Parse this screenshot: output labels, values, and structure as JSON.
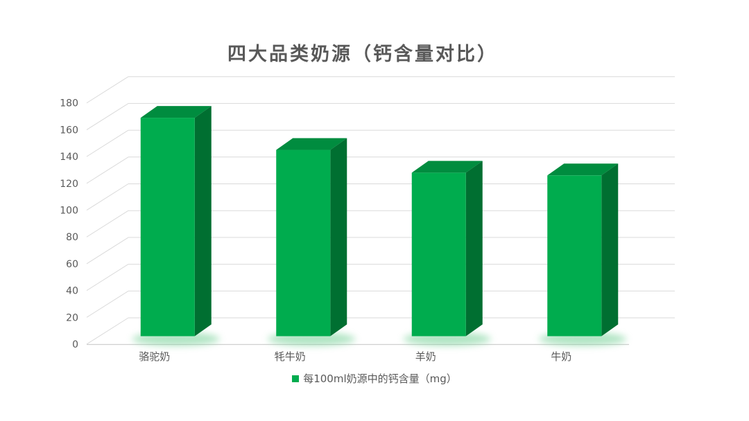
{
  "title": "四大品类奶源（钙含量对比）",
  "colors": {
    "bar_front": "#00AC4E",
    "bar_top": "#008C3F",
    "bar_side": "#006F31",
    "bar_glow": "#7FD49E",
    "gridline": "#DADADA",
    "axis_line": "#CFCFCF",
    "text": "#595959",
    "title_text": "#595959",
    "background": "#FFFFFF"
  },
  "legend": {
    "position": "bottom"
  },
  "chart_data": {
    "type": "bar",
    "variant": "3d-column",
    "title": "四大品类奶源（钙含量对比）",
    "categories": [
      "骆驼奶",
      "牦牛奶",
      "羊奶",
      "牛奶"
    ],
    "series": [
      {
        "name": "每100ml奶源中的钙含量（mg）",
        "values": [
          163,
          139,
          122,
          120
        ]
      }
    ],
    "xlabel": "",
    "ylabel": "",
    "ylim": [
      0,
      180
    ],
    "ytick_step": 20,
    "yticks": [
      0,
      20,
      40,
      60,
      80,
      100,
      120,
      140,
      160,
      180
    ],
    "grid": true,
    "legend_position": "bottom"
  }
}
